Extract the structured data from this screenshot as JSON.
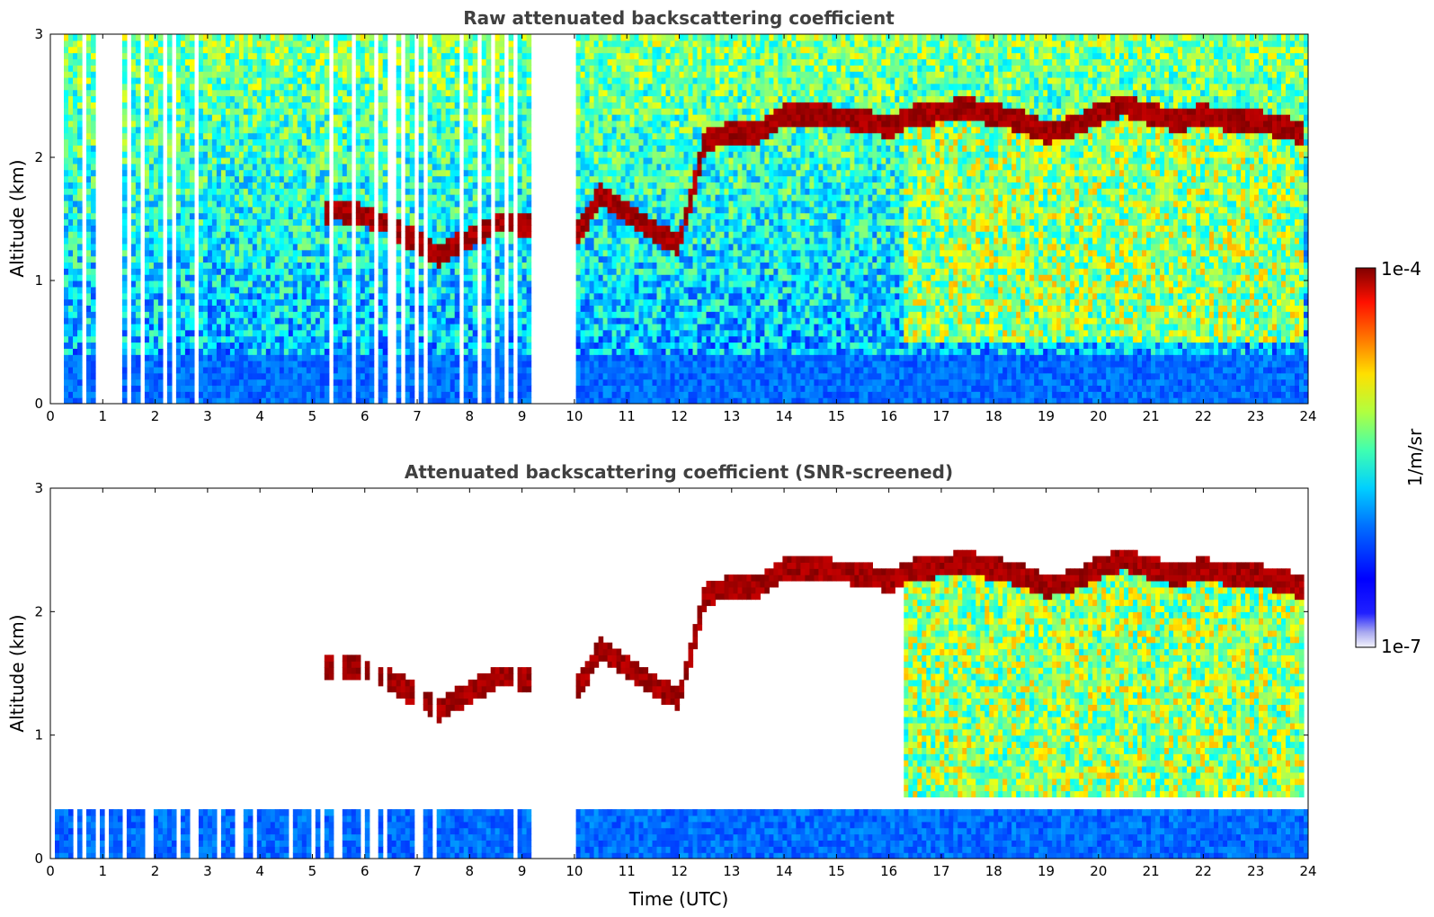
{
  "chart_data": [
    {
      "type": "heatmap",
      "title": "Raw attenuated backscattering coefficient",
      "xlabel": "",
      "ylabel": "Altitude (km)",
      "xlim": [
        0,
        24
      ],
      "ylim": [
        0,
        3
      ],
      "x_ticks": [
        "0",
        "1",
        "2",
        "3",
        "4",
        "5",
        "6",
        "7",
        "8",
        "9",
        "10",
        "11",
        "12",
        "13",
        "14",
        "15",
        "16",
        "17",
        "18",
        "19",
        "20",
        "21",
        "22",
        "23",
        "24"
      ],
      "y_ticks": [
        "0",
        "1",
        "2",
        "3"
      ],
      "screened": false,
      "missing_data_gaps_utc": [
        [
          9.15,
          10.05
        ]
      ],
      "cloud_layer": {
        "time_utc": [
          5.2,
          5.5,
          5.8,
          6.1,
          6.5,
          7.4,
          7.8,
          8.2,
          8.6,
          9.1,
          10.1,
          10.5,
          11.0,
          11.5,
          12.0,
          12.5,
          13.0,
          13.5,
          14.0,
          14.5,
          15.0,
          15.5,
          16.0,
          16.5,
          17.0,
          17.5,
          18.0,
          18.5,
          19.0,
          19.5,
          20.0,
          20.5,
          21.0,
          21.5,
          22.0,
          22.5,
          23.0,
          23.5,
          23.9
        ],
        "altitude_km": [
          1.55,
          1.57,
          1.55,
          1.52,
          1.45,
          1.2,
          1.3,
          1.4,
          1.48,
          1.45,
          1.4,
          1.7,
          1.55,
          1.4,
          1.3,
          2.15,
          2.2,
          2.2,
          2.35,
          2.35,
          2.33,
          2.3,
          2.25,
          2.35,
          2.37,
          2.4,
          2.35,
          2.3,
          2.2,
          2.25,
          2.35,
          2.43,
          2.35,
          2.3,
          2.35,
          2.3,
          2.3,
          2.25,
          2.2
        ]
      }
    },
    {
      "type": "heatmap",
      "title": "Attenuated backscattering coefficient (SNR-screened)",
      "xlabel": "Time (UTC)",
      "ylabel": "Altitude (km)",
      "xlim": [
        0,
        24
      ],
      "ylim": [
        0,
        3
      ],
      "x_ticks": [
        "0",
        "1",
        "2",
        "3",
        "4",
        "5",
        "6",
        "7",
        "8",
        "9",
        "10",
        "11",
        "12",
        "13",
        "14",
        "15",
        "16",
        "17",
        "18",
        "19",
        "20",
        "21",
        "22",
        "23",
        "24"
      ],
      "y_ticks": [
        "0",
        "1",
        "2",
        "3"
      ],
      "screened": true,
      "missing_data_gaps_utc": [
        [
          9.15,
          10.05
        ]
      ]
    }
  ],
  "colorbar": {
    "label": "1/m/sr",
    "min_label": "1e-7",
    "max_label": "1e-4",
    "scale": "log",
    "colormap": "jet"
  }
}
